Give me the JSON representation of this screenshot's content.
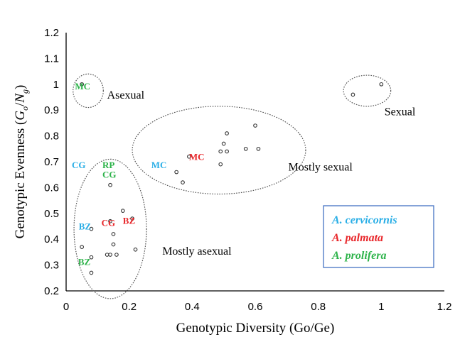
{
  "chart_data": {
    "type": "scatter",
    "title": "",
    "xlabel": "Genotypic Diversity (Go/Ge)",
    "ylabel_parts": [
      "Genotypic Evenness (",
      "G",
      "o",
      "/",
      "N",
      "g",
      ")"
    ],
    "xlim": [
      0,
      1.2
    ],
    "ylim": [
      0.2,
      1.2
    ],
    "x_ticks": [
      "0",
      "0.2",
      "0.4",
      "0.6",
      "0.8",
      "1",
      "1.2"
    ],
    "y_ticks": [
      "0.2",
      "0.3",
      "0.4",
      "0.5",
      "0.6",
      "0.7",
      "0.8",
      "0.9",
      "1",
      "1.1",
      "1.2"
    ],
    "grid": false,
    "points": [
      {
        "x": 0.05,
        "y": 1.0
      },
      {
        "x": 0.91,
        "y": 0.96
      },
      {
        "x": 1.0,
        "y": 1.0
      },
      {
        "x": 0.35,
        "y": 0.66
      },
      {
        "x": 0.37,
        "y": 0.62
      },
      {
        "x": 0.39,
        "y": 0.72
      },
      {
        "x": 0.49,
        "y": 0.69
      },
      {
        "x": 0.49,
        "y": 0.74
      },
      {
        "x": 0.5,
        "y": 0.77
      },
      {
        "x": 0.51,
        "y": 0.74
      },
      {
        "x": 0.51,
        "y": 0.81
      },
      {
        "x": 0.57,
        "y": 0.75
      },
      {
        "x": 0.6,
        "y": 0.84
      },
      {
        "x": 0.61,
        "y": 0.75
      },
      {
        "x": 0.14,
        "y": 0.61
      },
      {
        "x": 0.18,
        "y": 0.51
      },
      {
        "x": 0.21,
        "y": 0.48
      },
      {
        "x": 0.14,
        "y": 0.47
      },
      {
        "x": 0.08,
        "y": 0.44
      },
      {
        "x": 0.15,
        "y": 0.42
      },
      {
        "x": 0.15,
        "y": 0.38
      },
      {
        "x": 0.05,
        "y": 0.37
      },
      {
        "x": 0.22,
        "y": 0.36
      },
      {
        "x": 0.13,
        "y": 0.34
      },
      {
        "x": 0.14,
        "y": 0.34
      },
      {
        "x": 0.16,
        "y": 0.34
      },
      {
        "x": 0.08,
        "y": 0.33
      },
      {
        "x": 0.08,
        "y": 0.27
      }
    ],
    "regions": [
      {
        "label": "Asexual",
        "cx": 0.07,
        "cy": 0.975,
        "rx": 0.048,
        "ry": 0.065,
        "lx": 0.13,
        "ly": 0.945
      },
      {
        "label": "Sexual",
        "cx": 0.955,
        "cy": 0.975,
        "rx": 0.075,
        "ry": 0.06,
        "lx": 1.01,
        "ly": 0.88
      },
      {
        "label": "Mostly sexual",
        "cx": 0.485,
        "cy": 0.745,
        "rx": 0.275,
        "ry": 0.17,
        "lx": 0.705,
        "ly": 0.665
      },
      {
        "label": "Mostly asexual",
        "cx": 0.14,
        "cy": 0.44,
        "rx": 0.115,
        "ry": 0.27,
        "lx": 0.305,
        "ly": 0.34
      }
    ],
    "site_labels": [
      {
        "text": "MC",
        "color": "#2db34a",
        "x": 0.028,
        "y": 0.98
      },
      {
        "text": "CG",
        "color": "#29aee6",
        "x": 0.018,
        "y": 0.675
      },
      {
        "text": "RP",
        "color": "#2db34a",
        "x": 0.115,
        "y": 0.675
      },
      {
        "text": "CG",
        "color": "#2db34a",
        "x": 0.115,
        "y": 0.638
      },
      {
        "text": "MC",
        "color": "#29aee6",
        "x": 0.27,
        "y": 0.675
      },
      {
        "text": "MC",
        "color": "#e8262a",
        "x": 0.39,
        "y": 0.707
      },
      {
        "text": "BZ",
        "color": "#29aee6",
        "x": 0.04,
        "y": 0.438
      },
      {
        "text": "CG",
        "color": "#e8262a",
        "x": 0.112,
        "y": 0.452
      },
      {
        "text": "BZ",
        "color": "#e8262a",
        "x": 0.18,
        "y": 0.46
      },
      {
        "text": "BZ",
        "color": "#2db34a",
        "x": 0.038,
        "y": 0.3
      }
    ],
    "legend": {
      "placement": "bottom-right",
      "entries": [
        {
          "name": "A. cervicornis",
          "color": "#29aee6"
        },
        {
          "name": "A. palmata",
          "color": "#e8262a"
        },
        {
          "name": "A. prolifera",
          "color": "#2db34a"
        }
      ]
    }
  }
}
